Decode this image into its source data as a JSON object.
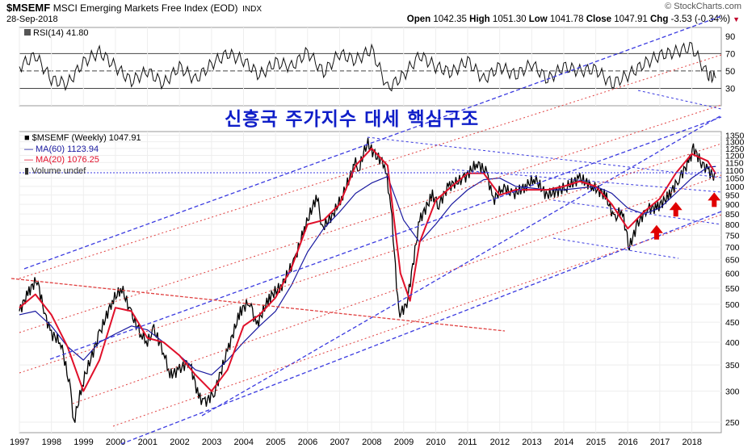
{
  "header": {
    "symbol": "$MSEMF",
    "description": "MSCI Emerging Markets Free Index (EOD)",
    "exchange": "INDX",
    "date": "28-Sep-2018",
    "brand": "© StockCharts.com",
    "ohlc": {
      "open_label": "Open",
      "open": "1042.35",
      "high_label": "High",
      "high": "1051.30",
      "low_label": "Low",
      "low": "1041.78",
      "close_label": "Close",
      "close": "1047.91",
      "chg_label": "Chg",
      "chg": "-3.53 (-0.34%)"
    }
  },
  "overlay_text": "신흥국 주가지수 대세 핵심구조",
  "legend": {
    "rsi": "RSI(14) 41.80",
    "price": "$MSEMF (Weekly) 1047.91",
    "ma60": "MA(60) 1123.94",
    "ma20": "MA(20) 1076.25",
    "volume": "Volume undef"
  },
  "colors": {
    "price": "#000000",
    "ma60": "#1a1aa0",
    "ma20": "#e0102a",
    "channel": "#3a3ae0",
    "red_lines": "#e04040",
    "arrows": "#e00000",
    "overlay_text": "#0f1ec8"
  },
  "chart_data": [
    {
      "type": "line",
      "title": "RSI(14)",
      "series": [
        {
          "name": "RSI(14)",
          "x": [
            1997.0,
            1997.5,
            1998.0,
            1998.5,
            1999.0,
            1999.5,
            2000.0,
            2000.5,
            2001.0,
            2001.5,
            2002.0,
            2002.5,
            2003.0,
            2003.5,
            2004.0,
            2004.5,
            2005.0,
            2005.5,
            2006.0,
            2006.5,
            2007.0,
            2007.5,
            2008.0,
            2008.5,
            2009.0,
            2009.5,
            2010.0,
            2010.5,
            2011.0,
            2011.5,
            2012.0,
            2012.5,
            2013.0,
            2013.5,
            2014.0,
            2014.5,
            2015.0,
            2015.5,
            2016.0,
            2016.5,
            2017.0,
            2017.5,
            2018.0,
            2018.5,
            2018.75
          ],
          "values": [
            55,
            68,
            40,
            35,
            60,
            72,
            55,
            38,
            50,
            35,
            55,
            40,
            58,
            70,
            62,
            45,
            60,
            55,
            72,
            48,
            70,
            62,
            75,
            30,
            45,
            68,
            55,
            48,
            62,
            40,
            55,
            45,
            58,
            40,
            55,
            50,
            52,
            35,
            45,
            58,
            68,
            72,
            78,
            45,
            42
          ]
        }
      ],
      "y_ticks": [
        30,
        50,
        70,
        90
      ],
      "reference_lines": [
        30,
        50,
        70
      ],
      "ylim": [
        10,
        100
      ],
      "xlim": [
        1997.0,
        1019.0
      ]
    },
    {
      "type": "line",
      "title": "$MSEMF (Weekly) 1047.91",
      "x_ticks": [
        "1997",
        "1998",
        "1999",
        "2000",
        "2001",
        "2002",
        "2003",
        "2004",
        "2005",
        "2006",
        "2007",
        "2008",
        "2009",
        "2010",
        "2011",
        "2012",
        "2013",
        "2014",
        "2015",
        "2016",
        "2017",
        "2018"
      ],
      "y_ticks": [
        250,
        300,
        350,
        400,
        450,
        500,
        550,
        600,
        650,
        700,
        750,
        800,
        850,
        900,
        950,
        1000,
        1050,
        1100,
        1150,
        1200,
        1250,
        1300,
        1350
      ],
      "y_scale": "log",
      "ylim": [
        235,
        1380
      ],
      "series": [
        {
          "name": "$MSEMF",
          "x": [
            1997.0,
            1997.3,
            1997.55,
            1997.8,
            1998.0,
            1998.3,
            1998.6,
            1998.7,
            1999.0,
            1999.5,
            1999.9,
            2000.2,
            2000.5,
            2000.8,
            2001.0,
            2001.2,
            2001.5,
            2001.7,
            2002.0,
            2002.3,
            2002.6,
            2002.8,
            2003.1,
            2003.5,
            2003.9,
            2004.2,
            2004.4,
            2004.8,
            2005.2,
            2005.6,
            2005.9,
            2006.3,
            2006.45,
            2006.8,
            2007.1,
            2007.5,
            2007.6,
            2007.85,
            2008.1,
            2008.4,
            2008.6,
            2008.85,
            2009.1,
            2009.5,
            2009.9,
            2010.1,
            2010.4,
            2010.9,
            2011.3,
            2011.6,
            2011.8,
            2012.1,
            2012.4,
            2012.8,
            2013.1,
            2013.45,
            2013.9,
            2014.1,
            2014.5,
            2014.9,
            2015.3,
            2015.6,
            2015.8,
            2016.05,
            2016.3,
            2016.6,
            2016.9,
            2017.3,
            2017.6,
            2017.9,
            2018.05,
            2018.3,
            2018.5,
            2018.75
          ],
          "values": [
            480,
            540,
            580,
            470,
            420,
            400,
            300,
            250,
            320,
            420,
            510,
            550,
            470,
            420,
            400,
            430,
            380,
            330,
            340,
            360,
            290,
            280,
            300,
            380,
            480,
            510,
            440,
            520,
            560,
            650,
            780,
            950,
            780,
            850,
            950,
            1150,
            1100,
            1300,
            1200,
            1150,
            900,
            470,
            500,
            820,
            950,
            900,
            1000,
            1050,
            1150,
            1080,
            920,
            1000,
            950,
            1000,
            1050,
            950,
            980,
            1000,
            1050,
            1000,
            950,
            820,
            880,
            700,
            800,
            880,
            880,
            950,
            1050,
            1150,
            1250,
            1150,
            1100,
            1047
          ]
        },
        {
          "name": "MA(20)",
          "x": [
            1997.0,
            1997.5,
            1998.0,
            1998.5,
            1999.0,
            1999.5,
            2000.0,
            2000.5,
            2001.0,
            2001.5,
            2002.0,
            2002.5,
            2003.0,
            2003.5,
            2004.0,
            2004.5,
            2005.0,
            2005.5,
            2006.0,
            2006.5,
            2007.0,
            2007.5,
            2008.0,
            2008.5,
            2008.9,
            2009.2,
            2009.5,
            2010.0,
            2010.5,
            2011.0,
            2011.5,
            2012.0,
            2012.5,
            2013.0,
            2013.5,
            2014.0,
            2014.5,
            2015.0,
            2015.5,
            2016.0,
            2016.5,
            2017.0,
            2017.5,
            2018.0,
            2018.5,
            2018.75
          ],
          "values": [
            490,
            530,
            470,
            390,
            300,
            360,
            490,
            480,
            410,
            400,
            370,
            330,
            300,
            340,
            440,
            470,
            520,
            620,
            800,
            820,
            900,
            1130,
            1250,
            1130,
            600,
            510,
            720,
            920,
            1000,
            1080,
            1080,
            950,
            980,
            980,
            980,
            1000,
            1030,
            1000,
            900,
            780,
            860,
            930,
            1080,
            1210,
            1160,
            1076
          ]
        },
        {
          "name": "MA(60)",
          "x": [
            1997.0,
            1997.5,
            1998.0,
            1998.5,
            1999.0,
            1999.5,
            2000.0,
            2000.5,
            2001.0,
            2001.5,
            2002.0,
            2002.5,
            2003.0,
            2003.5,
            2004.0,
            2004.5,
            2005.0,
            2005.5,
            2006.0,
            2006.5,
            2007.0,
            2007.5,
            2008.0,
            2008.5,
            2009.0,
            2009.5,
            2010.0,
            2010.5,
            2011.0,
            2011.5,
            2012.0,
            2012.5,
            2013.0,
            2013.5,
            2014.0,
            2014.5,
            2015.0,
            2015.5,
            2016.0,
            2016.5,
            2017.0,
            2017.5,
            2018.0,
            2018.5,
            2018.75
          ],
          "values": [
            470,
            480,
            440,
            390,
            360,
            400,
            420,
            440,
            430,
            400,
            370,
            340,
            330,
            360,
            400,
            440,
            480,
            560,
            680,
            780,
            860,
            960,
            1020,
            1060,
            820,
            720,
            800,
            900,
            980,
            1040,
            1050,
            1000,
            990,
            980,
            980,
            990,
            1000,
            960,
            880,
            850,
            880,
            960,
            1050,
            1120,
            1124
          ]
        }
      ],
      "annotations": [
        {
          "type": "arrow-up",
          "x": 2016.9,
          "y": 760
        },
        {
          "type": "arrow-up",
          "x": 2017.5,
          "y": 870
        },
        {
          "type": "arrow-up",
          "x": 2018.7,
          "y": 920
        }
      ]
    }
  ]
}
